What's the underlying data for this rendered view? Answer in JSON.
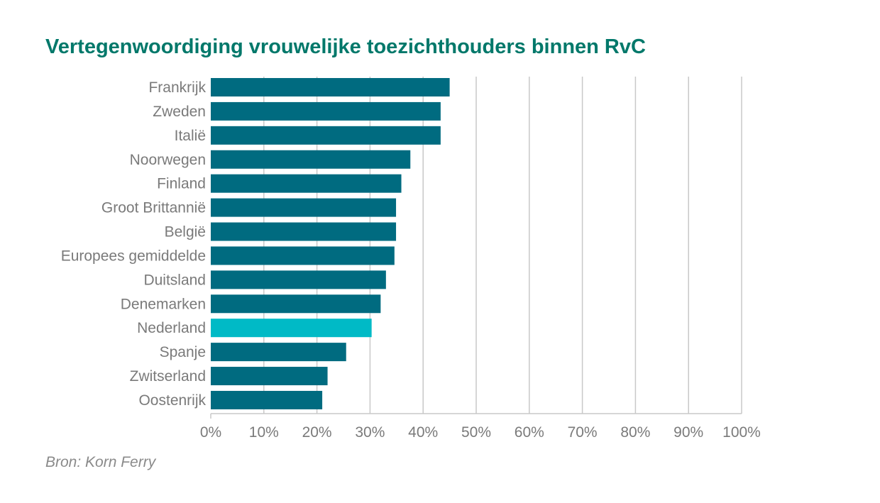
{
  "colors": {
    "title": "#00786a",
    "bar": "#006b80",
    "highlight_bar": "#00bac6",
    "grid": "#c8c8c8",
    "axis_text": "#7a7a7a",
    "source_text": "#8a8a8a"
  },
  "chart_data": {
    "type": "bar",
    "orientation": "horizontal",
    "title": "Vertegenwoordiging vrouwelijke toezichthouders binnen RvC",
    "xlabel": "",
    "ylabel": "",
    "categories": [
      "Frankrijk",
      "Zweden",
      "Italië",
      "Noorwegen",
      "Finland",
      "Groot Brittannië",
      "België",
      "Europees gemiddelde",
      "Duitsland",
      "Denemarken",
      "Nederland",
      "Spanje",
      "Zwitserland",
      "Oostenrijk"
    ],
    "values": [
      45,
      43.3,
      43.3,
      37.6,
      35.9,
      34.9,
      34.9,
      34.6,
      33,
      32,
      30.3,
      25.5,
      22,
      21
    ],
    "highlight": "Nederland",
    "xlim": [
      0,
      100
    ],
    "xticks": [
      "0%",
      "10%",
      "20%",
      "30%",
      "40%",
      "50%",
      "60%",
      "70%",
      "80%",
      "90%",
      "100%"
    ],
    "grid": "vertical",
    "legend": "none"
  },
  "source": "Bron: Korn Ferry"
}
